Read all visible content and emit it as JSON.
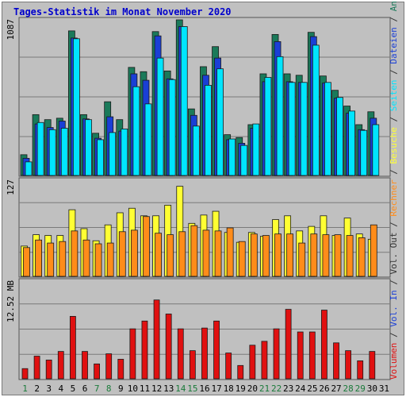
{
  "chart_data": {
    "title": "Tages-Statistik im Monat November 2020",
    "x": [
      "1",
      "2",
      "3",
      "4",
      "5",
      "6",
      "7",
      "8",
      "9",
      "10",
      "11",
      "12",
      "13",
      "14",
      "15",
      "16",
      "17",
      "18",
      "19",
      "20",
      "21",
      "22",
      "23",
      "24",
      "25",
      "26",
      "27",
      "28",
      "29",
      "30",
      "31"
    ],
    "weekend_days": [
      "1",
      "7",
      "8",
      "14",
      "15",
      "21",
      "22",
      "28",
      "29"
    ],
    "colors": {
      "frame_bg": "#c0c0c0",
      "plot_bg": "#c0c0c0",
      "title": "#0000cc",
      "anfragen": "#1a7a5a",
      "dateien": "#1a3fd6",
      "seiten": "#00e5ff",
      "besuche": "#ffff33",
      "rechner": "#ff8c1a",
      "volumen": "#e01010",
      "weekday_tick": "#000000",
      "weekend_tick": "#1a7a3a"
    },
    "panels": [
      {
        "type": "bar",
        "ymax_label": "1087",
        "ylim": [
          0,
          1087
        ],
        "series": [
          {
            "name": "Anfragen",
            "values": [
              145,
              425,
              390,
              400,
              1010,
              425,
              295,
              515,
              390,
              755,
              725,
              1005,
              730,
              1087,
              465,
              760,
              900,
              285,
              265,
              355,
              710,
              985,
              710,
              700,
              1000,
              695,
              595,
              485,
              355,
              445,
              0
            ]
          },
          {
            "name": "Dateien",
            "values": [
              120,
              360,
              335,
              380,
              960,
              395,
              260,
              410,
              310,
              710,
              665,
              975,
              675,
              1040,
              420,
              700,
              820,
              250,
              225,
              330,
              655,
              935,
              655,
              650,
              970,
              645,
              540,
              435,
              320,
              400,
              0
            ]
          },
          {
            "name": "Seiten",
            "values": [
              95,
              370,
              320,
              330,
              955,
              390,
              250,
              300,
              325,
              620,
              500,
              820,
              670,
              1040,
              345,
              630,
              745,
              255,
              210,
              360,
              685,
              830,
              650,
              650,
              910,
              650,
              545,
              450,
              315,
              355,
              0
            ]
          }
        ]
      },
      {
        "type": "bar",
        "ymax_label": "127",
        "ylim": [
          0,
          127
        ],
        "series": [
          {
            "name": "Besuche",
            "values": [
              40,
              55,
              54,
              54,
              88,
              63,
              47,
              68,
              84,
              90,
              80,
              80,
              94,
              119,
              70,
              81,
              86,
              58,
              45,
              58,
              53,
              75,
              80,
              60,
              66,
              80,
              54,
              77,
              56,
              49,
              0
            ]
          },
          {
            "name": "Rechner",
            "values": [
              38,
              48,
              44,
              46,
              60,
              48,
              43,
              44,
              59,
              61,
              79,
              57,
              55,
              59,
              67,
              61,
              60,
              64,
              46,
              56,
              54,
              56,
              56,
              44,
              56,
              55,
              55,
              54,
              51,
              68,
              0
            ]
          }
        ]
      },
      {
        "type": "bar",
        "ymax_label": "12.52 MB",
        "ylim": [
          0,
          12.52
        ],
        "series": [
          {
            "name": "Volumen",
            "values": [
              1.3,
              2.9,
              2.4,
              3.5,
              8.0,
              3.5,
              1.9,
              3.2,
              2.5,
              6.4,
              7.4,
              10.1,
              8.3,
              6.4,
              3.6,
              6.5,
              7.4,
              3.3,
              1.7,
              4.3,
              4.8,
              6.4,
              8.9,
              6.0,
              6.0,
              8.8,
              4.6,
              3.6,
              2.3,
              3.5,
              0
            ]
          }
        ]
      }
    ],
    "right_legend": [
      {
        "text": "Volumen",
        "color": "#e01010"
      },
      {
        "text": " / ",
        "color": "#333333"
      },
      {
        "text": "Vol. In",
        "color": "#1a3fd6"
      },
      {
        "text": " / ",
        "color": "#333333"
      },
      {
        "text": "Vol. Out",
        "color": "#333333"
      },
      {
        "text": " / ",
        "color": "#333333"
      },
      {
        "text": "Rechner",
        "color": "#ff8c1a"
      },
      {
        "text": " / ",
        "color": "#333333"
      },
      {
        "text": "Besuche",
        "color": "#ffff33"
      },
      {
        "text": " / ",
        "color": "#333333"
      },
      {
        "text": "Seiten",
        "color": "#00e5ff"
      },
      {
        "text": " / ",
        "color": "#333333"
      },
      {
        "text": "Dateien",
        "color": "#1a3fd6"
      },
      {
        "text": " / ",
        "color": "#333333"
      },
      {
        "text": "Anfragen",
        "color": "#1a7a5a"
      }
    ]
  }
}
